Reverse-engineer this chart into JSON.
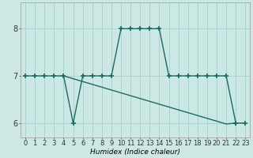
{
  "xlabel": "Humidex (Indice chaleur)",
  "background_color": "#cce8e4",
  "line_color": "#1a6b5e",
  "grid_color": "#aad4ce",
  "hours": [
    0,
    1,
    2,
    3,
    4,
    5,
    6,
    7,
    8,
    9,
    10,
    11,
    12,
    13,
    14,
    15,
    16,
    17,
    18,
    19,
    20,
    21,
    22,
    23
  ],
  "series1": [
    7,
    7,
    7,
    7,
    7,
    6,
    7,
    7,
    7,
    7,
    8,
    8,
    8,
    8,
    8,
    7,
    7,
    7,
    7,
    7,
    7,
    7,
    6,
    6
  ],
  "diag_x": [
    4,
    5,
    6,
    7,
    8,
    9,
    10,
    11,
    12,
    13,
    14,
    15,
    16,
    17,
    18,
    19,
    20,
    21,
    22
  ],
  "diag_y": [
    7.0,
    6.94,
    6.88,
    6.82,
    6.76,
    6.7,
    6.64,
    6.58,
    6.52,
    6.46,
    6.4,
    6.34,
    6.28,
    6.22,
    6.16,
    6.1,
    6.04,
    5.98,
    6.0
  ],
  "ylim": [
    5.7,
    8.55
  ],
  "yticks": [
    6,
    7,
    8
  ],
  "marker": "+",
  "markersize": 4,
  "markeredgewidth": 1.2,
  "linewidth": 1.0,
  "xlabel_fontsize": 6.5,
  "tick_fontsize": 6,
  "ytick_fontsize": 7
}
